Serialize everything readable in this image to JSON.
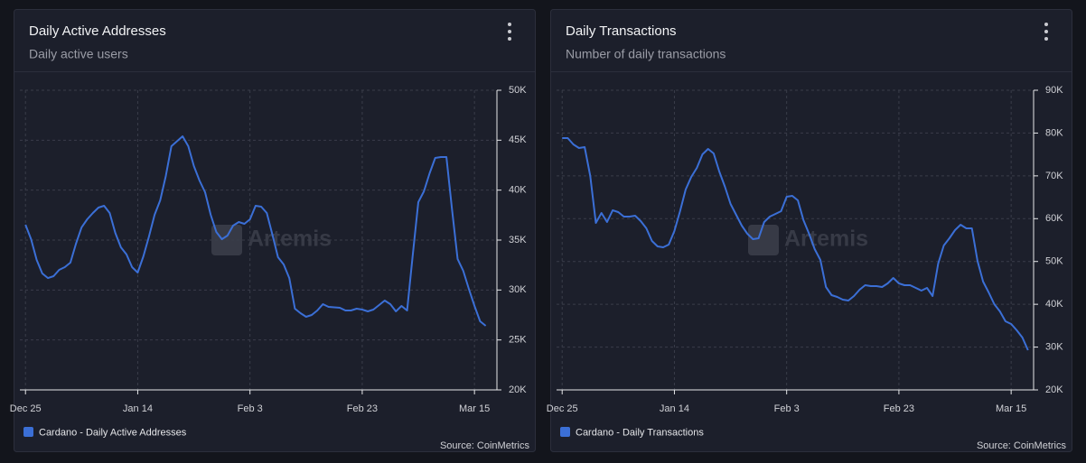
{
  "chart_data": [
    {
      "type": "line",
      "title": "Daily Active Addresses",
      "subtitle": "Daily active users",
      "watermark": "Artemis",
      "source": "Source: CoinMetrics",
      "x": [
        0,
        1,
        2,
        3,
        4,
        5,
        6,
        7,
        8,
        9,
        10,
        11,
        12,
        13,
        14,
        15,
        16,
        17,
        18,
        19,
        20,
        21,
        22,
        23,
        24,
        25,
        26,
        28,
        29,
        30,
        31,
        32,
        33,
        34,
        35,
        36,
        37,
        38,
        39,
        40,
        41,
        42,
        43,
        44,
        45,
        46,
        47,
        48,
        49,
        50,
        51,
        52,
        53,
        54,
        56,
        57,
        58,
        59,
        60,
        61,
        62,
        63,
        64,
        65,
        66,
        67,
        68,
        69,
        70,
        71,
        72,
        73,
        74,
        75,
        76,
        77,
        78,
        79,
        80,
        81,
        82
      ],
      "series": [
        {
          "name": "Cardano - Daily Active Addresses",
          "color": "#3b6fd6",
          "values": [
            36540,
            35090,
            33010,
            31660,
            31200,
            31390,
            32020,
            32290,
            32740,
            34640,
            36270,
            37080,
            37710,
            38250,
            38430,
            37710,
            35720,
            34280,
            33560,
            32290,
            31750,
            33370,
            35360,
            37530,
            38980,
            41410,
            44400,
            45390,
            44400,
            42410,
            40960,
            39790,
            37530,
            35810,
            35090,
            35450,
            36450,
            36810,
            36630,
            37080,
            38430,
            38340,
            37710,
            35540,
            33280,
            32560,
            31200,
            28130,
            27680,
            27320,
            27500,
            27950,
            28580,
            28310,
            28220,
            27950,
            27950,
            28130,
            28040,
            27860,
            28040,
            28490,
            28950,
            28580,
            27860,
            28400,
            27950,
            33460,
            38800,
            39880,
            41690,
            43220,
            43310,
            43310,
            38070,
            33100,
            31930,
            30120,
            28400,
            26870,
            26420
          ]
        }
      ],
      "xlim": [
        -1,
        84
      ],
      "xticks": [
        {
          "value": 0,
          "label": "Dec 25"
        },
        {
          "value": 20,
          "label": "Jan 14"
        },
        {
          "value": 40,
          "label": "Feb 3"
        },
        {
          "value": 60,
          "label": "Feb 23"
        },
        {
          "value": 80,
          "label": "Mar 15"
        }
      ],
      "ylim": [
        20000,
        50000
      ],
      "yticks": [
        {
          "value": 20000,
          "label": "20K"
        },
        {
          "value": 25000,
          "label": "25K"
        },
        {
          "value": 30000,
          "label": "30K"
        },
        {
          "value": 35000,
          "label": "35K"
        },
        {
          "value": 40000,
          "label": "40K"
        },
        {
          "value": 45000,
          "label": "45K"
        },
        {
          "value": 50000,
          "label": "50K"
        }
      ],
      "grid": true
    },
    {
      "type": "line",
      "title": "Daily Transactions",
      "subtitle": "Number of daily transactions",
      "watermark": "Artemis",
      "source": "Source: CoinMetrics",
      "x": [
        0,
        1,
        2,
        3,
        4,
        5,
        6,
        7,
        8,
        9,
        10,
        11,
        12,
        13,
        14,
        15,
        16,
        17,
        18,
        19,
        20,
        21,
        22,
        23,
        24,
        25,
        26,
        27,
        28,
        29,
        30,
        31,
        32,
        33,
        34,
        35,
        36,
        37,
        38,
        39,
        40,
        41,
        42,
        43,
        44,
        45,
        46,
        47,
        48,
        49,
        50,
        51,
        52,
        53,
        54,
        55,
        56,
        57,
        58,
        59,
        60,
        61,
        62,
        63,
        64,
        65,
        66,
        67,
        68,
        69,
        70,
        71,
        72,
        73,
        74,
        75,
        76,
        77,
        78,
        79,
        80,
        81,
        82,
        83
      ],
      "series": [
        {
          "name": "Cardano - Daily Transactions",
          "color": "#3b6fd6",
          "values": [
            78830,
            78830,
            77350,
            76510,
            76720,
            69970,
            59010,
            61320,
            59220,
            61960,
            61540,
            60480,
            60480,
            60690,
            59430,
            57740,
            54790,
            53520,
            53310,
            53950,
            57110,
            61750,
            66810,
            69760,
            71870,
            75030,
            76300,
            75240,
            71020,
            67440,
            63440,
            60900,
            58370,
            56480,
            55210,
            55420,
            59220,
            60480,
            61110,
            61750,
            65120,
            65330,
            64280,
            59640,
            56480,
            52890,
            50360,
            44040,
            42140,
            41720,
            41080,
            40870,
            41930,
            43400,
            44460,
            44250,
            44250,
            44040,
            44880,
            46140,
            44880,
            44460,
            44460,
            43830,
            43190,
            43830,
            41930,
            49520,
            53730,
            55420,
            57320,
            58580,
            57740,
            57740,
            50150,
            45300,
            42770,
            40030,
            38340,
            36020,
            35390,
            33920,
            32230,
            29280
          ]
        }
      ],
      "xlim": [
        -1,
        84
      ],
      "xticks": [
        {
          "value": 0,
          "label": "Dec 25"
        },
        {
          "value": 20,
          "label": "Jan 14"
        },
        {
          "value": 40,
          "label": "Feb 3"
        },
        {
          "value": 60,
          "label": "Feb 23"
        },
        {
          "value": 80,
          "label": "Mar 15"
        }
      ],
      "ylim": [
        20000,
        90000
      ],
      "yticks": [
        {
          "value": 20000,
          "label": "20K"
        },
        {
          "value": 30000,
          "label": "30K"
        },
        {
          "value": 40000,
          "label": "40K"
        },
        {
          "value": 50000,
          "label": "50K"
        },
        {
          "value": 60000,
          "label": "60K"
        },
        {
          "value": 70000,
          "label": "70K"
        },
        {
          "value": 80000,
          "label": "80K"
        },
        {
          "value": 90000,
          "label": "90K"
        }
      ],
      "grid": true
    }
  ]
}
